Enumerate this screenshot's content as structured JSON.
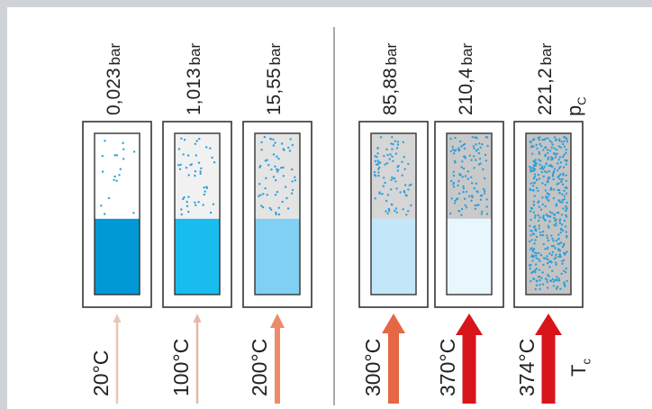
{
  "title": "",
  "vessels": [
    {
      "pressure": "0,023",
      "unit": "bar",
      "temperature": "20°C",
      "liquid_fraction": 0.47,
      "liquid_color": "#0099d6",
      "vapor_color": "#ffffff",
      "arrow_color": "#e8c6b8",
      "arrow_weight": "thin"
    },
    {
      "pressure": "1,013",
      "unit": "bar",
      "temperature": "100°C",
      "liquid_fraction": 0.47,
      "liquid_color": "#18bdee",
      "vapor_color": "#f1f1f1",
      "arrow_color": "#e8b6a2",
      "arrow_weight": "thin"
    },
    {
      "pressure": "15,55",
      "unit": "bar",
      "temperature": "200°C",
      "liquid_fraction": 0.47,
      "liquid_color": "#7fd0f2",
      "vapor_color": "#e4e4e4",
      "arrow_color": "#ee8a6a",
      "arrow_weight": "medium"
    },
    {
      "pressure": "85,88",
      "unit": "bar",
      "temperature": "300°C",
      "liquid_fraction": 0.47,
      "liquid_color": "#c2e7f8",
      "vapor_color": "#d6d6d6",
      "arrow_color": "#e66745",
      "arrow_weight": "thick"
    },
    {
      "pressure": "210,4",
      "unit": "bar",
      "temperature": "370°C",
      "liquid_fraction": 0.47,
      "liquid_color": "#e8f6fd",
      "vapor_color": "#c9c9c9",
      "arrow_color": "#d8151b",
      "arrow_weight": "heavy"
    },
    {
      "pressure": "221,2",
      "unit": "bar",
      "temperature": "374°C",
      "liquid_fraction": 0,
      "liquid_color": "#c4c4c4",
      "vapor_color": "#c4c4c4",
      "arrow_color": "#d8151b",
      "arrow_weight": "heavy"
    }
  ],
  "critical": {
    "pressure_symbol": "p",
    "pressure_sub": "C",
    "temperature_symbol": "T",
    "temperature_sub": "c"
  },
  "colors": {
    "dot": "#2f9fd8",
    "frame": "#cfd3d8",
    "box": "#333333"
  }
}
